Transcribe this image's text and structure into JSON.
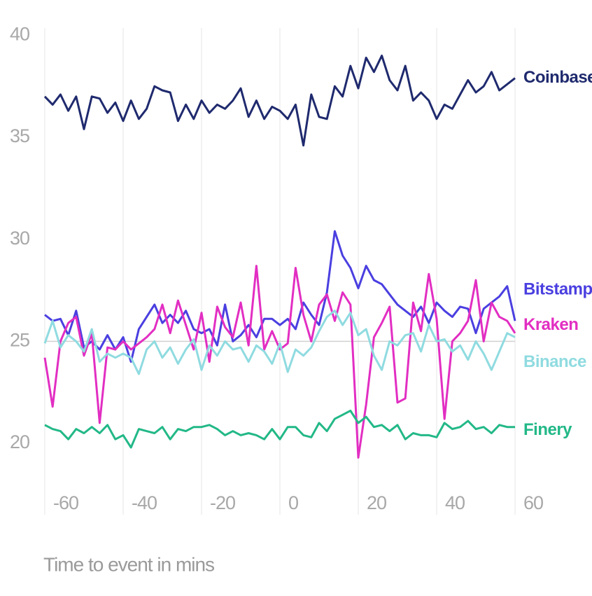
{
  "chart_data": {
    "type": "line",
    "xlabel": "Time to event in mins",
    "x": [
      -60,
      -58,
      -56,
      -54,
      -52,
      -50,
      -48,
      -46,
      -44,
      -42,
      -40,
      -38,
      -36,
      -34,
      -32,
      -30,
      -28,
      -26,
      -24,
      -22,
      -20,
      -18,
      -16,
      -14,
      -12,
      -10,
      -8,
      -6,
      -4,
      -2,
      0,
      2,
      4,
      6,
      8,
      10,
      12,
      14,
      16,
      18,
      20,
      22,
      24,
      26,
      28,
      30,
      32,
      34,
      36,
      38,
      40,
      42,
      44,
      46,
      48,
      50,
      52,
      54,
      56,
      58,
      60
    ],
    "series": [
      {
        "name": "Coinbase",
        "color": "#1f2a6e",
        "values": [
          37.0,
          36.6,
          37.1,
          36.3,
          37.0,
          35.4,
          37.0,
          36.9,
          36.2,
          36.7,
          35.8,
          36.8,
          35.9,
          36.4,
          37.5,
          37.3,
          37.2,
          35.8,
          36.6,
          35.9,
          36.8,
          36.2,
          36.6,
          36.4,
          36.8,
          37.4,
          36.0,
          36.8,
          35.9,
          36.5,
          36.3,
          35.9,
          36.6,
          34.6,
          37.1,
          36.0,
          35.9,
          37.5,
          37.0,
          38.5,
          37.4,
          38.9,
          38.2,
          39.0,
          37.8,
          37.3,
          38.5,
          36.8,
          37.2,
          36.8,
          35.9,
          36.6,
          36.4,
          37.1,
          37.8,
          37.2,
          37.5,
          38.2,
          37.3,
          37.6,
          37.9
        ]
      },
      {
        "name": "Bitstamp",
        "color": "#4a3fe0",
        "values": [
          26.3,
          26.0,
          26.1,
          25.3,
          26.5,
          24.7,
          25.0,
          24.6,
          25.3,
          24.6,
          25.2,
          24.0,
          25.6,
          26.2,
          26.8,
          25.9,
          26.3,
          25.9,
          26.5,
          25.6,
          25.4,
          25.6,
          24.8,
          26.8,
          25.0,
          25.3,
          25.8,
          25.2,
          26.1,
          26.1,
          25.8,
          26.1,
          25.6,
          26.9,
          26.3,
          25.8,
          27.4,
          30.4,
          29.2,
          28.6,
          27.6,
          28.7,
          28.0,
          27.8,
          27.3,
          26.8,
          26.5,
          26.2,
          26.7,
          25.9,
          26.9,
          26.5,
          26.2,
          26.7,
          26.6,
          25.4,
          26.6,
          26.9,
          27.2,
          27.7,
          26.0
        ]
      },
      {
        "name": "Kraken",
        "color": "#e22ec2",
        "values": [
          24.2,
          21.8,
          25.0,
          25.9,
          26.2,
          24.3,
          25.4,
          21.0,
          24.7,
          24.6,
          25.0,
          24.6,
          24.9,
          25.2,
          25.6,
          26.8,
          25.4,
          27.0,
          25.8,
          24.6,
          26.4,
          24.0,
          26.7,
          25.7,
          25.2,
          26.9,
          24.8,
          28.7,
          24.6,
          25.5,
          24.6,
          24.9,
          28.6,
          26.3,
          25.0,
          26.8,
          27.3,
          26.0,
          27.4,
          26.8,
          19.3,
          21.9,
          25.2,
          25.9,
          26.7,
          22.0,
          22.2,
          26.9,
          25.5,
          28.3,
          26.1,
          21.2,
          25.0,
          25.4,
          26.0,
          28.0,
          25.0,
          26.9,
          26.2,
          26.0,
          25.4
        ]
      },
      {
        "name": "Binance",
        "color": "#8fdbe0",
        "values": [
          24.9,
          26.0,
          24.7,
          25.3,
          25.0,
          24.5,
          25.6,
          24.0,
          24.4,
          24.2,
          24.4,
          24.2,
          23.4,
          24.6,
          25.0,
          24.2,
          24.7,
          23.9,
          24.6,
          25.1,
          23.6,
          24.8,
          24.3,
          25.0,
          24.6,
          24.7,
          24.0,
          24.8,
          24.5,
          23.9,
          24.9,
          23.5,
          24.6,
          24.3,
          24.7,
          25.5,
          26.2,
          26.5,
          25.8,
          26.4,
          25.3,
          25.6,
          24.3,
          23.6,
          25.0,
          24.8,
          25.3,
          25.4,
          24.5,
          25.8,
          25.0,
          25.1,
          24.5,
          24.8,
          24.1,
          25.0,
          24.4,
          23.6,
          24.5,
          25.4,
          25.2
        ]
      },
      {
        "name": "Finery",
        "color": "#22b887",
        "values": [
          20.9,
          20.7,
          20.6,
          20.2,
          20.7,
          20.5,
          20.8,
          20.5,
          20.9,
          20.2,
          20.4,
          19.8,
          20.7,
          20.6,
          20.5,
          20.8,
          20.2,
          20.7,
          20.6,
          20.8,
          20.8,
          20.9,
          20.7,
          20.4,
          20.6,
          20.4,
          20.5,
          20.4,
          20.2,
          20.7,
          20.2,
          20.8,
          20.8,
          20.4,
          20.3,
          21.0,
          20.6,
          21.2,
          21.4,
          21.6,
          21.0,
          21.3,
          20.8,
          20.9,
          20.6,
          20.9,
          20.2,
          20.5,
          20.4,
          20.4,
          20.3,
          21.0,
          20.7,
          20.8,
          21.1,
          20.7,
          20.8,
          20.5,
          20.9,
          20.8,
          20.8
        ]
      }
    ],
    "xlim": [
      -60,
      60
    ],
    "ylim": [
      16.5,
      40.7
    ],
    "xticks": [
      -60,
      -40,
      -20,
      0,
      20,
      40,
      60
    ],
    "yticks": [
      20,
      25,
      30,
      35,
      40
    ],
    "reference_line": 25,
    "grid": true
  }
}
